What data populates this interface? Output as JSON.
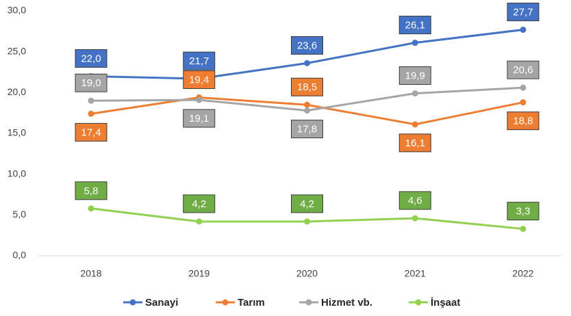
{
  "chart_data": {
    "type": "line",
    "categories": [
      "2018",
      "2019",
      "2020",
      "2021",
      "2022"
    ],
    "series": [
      {
        "name": "Sanayi",
        "color": "#4472c4",
        "values": [
          22.0,
          21.7,
          23.6,
          26.1,
          27.7
        ],
        "value_labels": [
          "22,0",
          "21,7",
          "23,6",
          "26,1",
          "27,7"
        ]
      },
      {
        "name": "Tarım",
        "color": "#ed7d31",
        "values": [
          17.4,
          19.4,
          18.5,
          16.1,
          18.8
        ],
        "value_labels": [
          "17,4",
          "19,4",
          "18,5",
          "16,1",
          "18,8"
        ]
      },
      {
        "name": "Hizmet vb.",
        "color": "#a5a5a5",
        "values": [
          19.0,
          19.1,
          17.8,
          19.9,
          20.6
        ],
        "value_labels": [
          "19,0",
          "19,1",
          "17,8",
          "19,9",
          "20,6"
        ]
      },
      {
        "name": "İnşaat",
        "color": "#92d050",
        "values": [
          5.8,
          4.2,
          4.2,
          4.6,
          3.3
        ],
        "value_labels": [
          "5,8",
          "4,2",
          "4,2",
          "4,6",
          "3,3"
        ]
      }
    ],
    "ylim": [
      0,
      30
    ],
    "yticks": [
      {
        "value": 0,
        "label": "0,0"
      },
      {
        "value": 5,
        "label": "5,0"
      },
      {
        "value": 10,
        "label": "10,0"
      },
      {
        "value": 15,
        "label": "15,0"
      },
      {
        "value": 20,
        "label": "20,0"
      },
      {
        "value": 25,
        "label": "25,0"
      },
      {
        "value": 30,
        "label": "30,0"
      }
    ],
    "legend": "bottom"
  }
}
